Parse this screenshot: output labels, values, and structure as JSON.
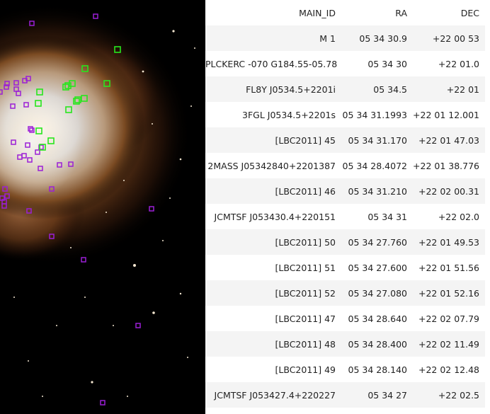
{
  "image_panel": {
    "marker_colors": {
      "simbad": "#9b1fd6",
      "selected": "#27e61d"
    },
    "marker_count": {
      "simbad": 44,
      "selected": 16
    }
  },
  "table": {
    "headers": {
      "main_id": "MAIN_ID",
      "ra": "RA",
      "dec": "DEC"
    },
    "rows": [
      {
        "main_id": "M 1",
        "ra": "05 34 30.9",
        "dec": "+22 00 53"
      },
      {
        "main_id": "PLCKERC -070 G184.55-05.78",
        "ra": "05 34 30",
        "dec": "+22 01.0"
      },
      {
        "main_id": "FL8Y J0534.5+2201i",
        "ra": "05 34.5",
        "dec": "+22 01"
      },
      {
        "main_id": "3FGL J0534.5+2201s",
        "ra": "05 34 31.1993",
        "dec": "+22 01 12.001"
      },
      {
        "main_id": "[LBC2011] 45",
        "ra": "05 34 31.170",
        "dec": "+22 01 47.03"
      },
      {
        "main_id": "2MASS J05342840+2201387",
        "ra": "05 34 28.4072",
        "dec": "+22 01 38.776"
      },
      {
        "main_id": "[LBC2011] 46",
        "ra": "05 34 31.210",
        "dec": "+22 02 00.31"
      },
      {
        "main_id": "JCMTSF J053430.4+220151",
        "ra": "05 34 31",
        "dec": "+22 02.0"
      },
      {
        "main_id": "[LBC2011] 50",
        "ra": "05 34 27.760",
        "dec": "+22 01 49.53"
      },
      {
        "main_id": "[LBC2011] 51",
        "ra": "05 34 27.600",
        "dec": "+22 01 51.56"
      },
      {
        "main_id": "[LBC2011] 52",
        "ra": "05 34 27.080",
        "dec": "+22 01 52.16"
      },
      {
        "main_id": "[LBC2011] 47",
        "ra": "05 34 28.640",
        "dec": "+22 02 07.79"
      },
      {
        "main_id": "[LBC2011] 48",
        "ra": "05 34 28.400",
        "dec": "+22 02 11.49"
      },
      {
        "main_id": "[LBC2011] 49",
        "ra": "05 34 28.140",
        "dec": "+22 02 12.48"
      },
      {
        "main_id": "JCMTSF J053427.4+220227",
        "ra": "05 34 27",
        "dec": "+22 02.5"
      }
    ]
  }
}
